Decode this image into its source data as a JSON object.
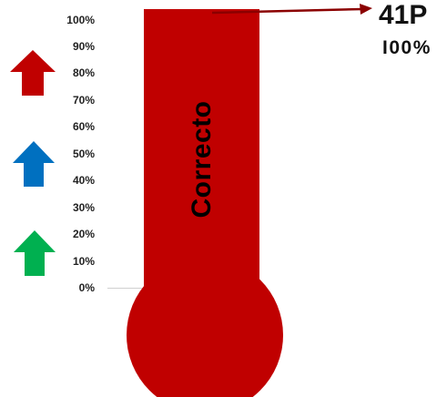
{
  "scale": {
    "ticks": [
      "100%",
      "90%",
      "80%",
      "70%",
      "60%",
      "50%",
      "40%",
      "30%",
      "20%",
      "10%",
      "0%"
    ]
  },
  "thermometer": {
    "label": "Correcto",
    "fill_percent": 100,
    "color": "#c00000"
  },
  "readout": {
    "value": "41P",
    "percent": "I00%"
  },
  "arrows": [
    {
      "name": "red-up-arrow",
      "color": "#c00000"
    },
    {
      "name": "blue-up-arrow",
      "color": "#0070c0"
    },
    {
      "name": "green-up-arrow",
      "color": "#00b050"
    }
  ]
}
